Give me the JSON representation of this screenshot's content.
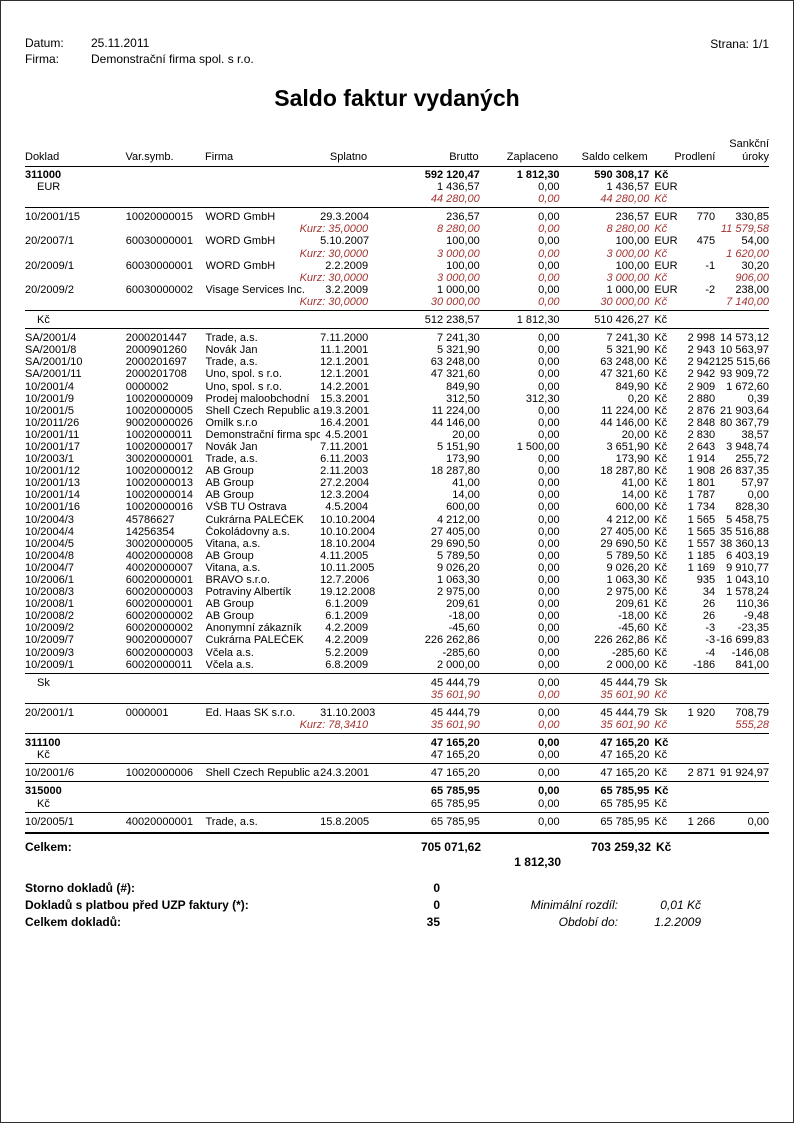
{
  "meta": {
    "datum_label": "Datum:",
    "datum": "25.11.2011",
    "firma_label": "Firma:",
    "firma": "Demonstrační firma spol. s r.o.",
    "strana": "Strana: 1/1"
  },
  "title": "Saldo faktur vydaných",
  "colors": {
    "red_text": "#a23533",
    "text": "#000000",
    "page_border": "#2f2f2f"
  },
  "header": {
    "doklad": "Doklad",
    "varsymb": "Var.symb.",
    "firma": "Firma",
    "splatno": "Splatno",
    "brutto": "Brutto",
    "zaplaceno": "Zaplaceno",
    "saldo": "Saldo celkem",
    "prodleni": "Prodlení",
    "sankcni_top": "Sankční",
    "sankcni_bottom": "úroky"
  },
  "rows": [
    {
      "t": "group",
      "doklad": "311000",
      "brutto": "592 120,47",
      "zapl": "1 812,30",
      "saldo": "590 308,17",
      "cur": "Kč"
    },
    {
      "t": "cursub",
      "label": "EUR",
      "brutto": "1 436,57",
      "zapl": "0,00",
      "saldo": "1 436,57",
      "cur": "EUR"
    },
    {
      "t": "red",
      "brutto": "44 280,00",
      "zapl": "0,00",
      "saldo": "44 280,00",
      "cur": "Kč"
    },
    {
      "t": "rule"
    },
    {
      "t": "detail",
      "doklad": "10/2001/15",
      "vs": "10020000015",
      "firma": "WORD GmbH",
      "splatno": "29.3.2004",
      "brutto": "236,57",
      "zapl": "0,00",
      "saldo": "236,57",
      "cur": "EUR",
      "prod": "770",
      "sank": "330,85"
    },
    {
      "t": "kurz",
      "kurz": "Kurz: 35,0000",
      "brutto": "8 280,00",
      "zapl": "0,00",
      "saldo": "8 280,00",
      "cur": "Kč",
      "sank": "11 579,58"
    },
    {
      "t": "detail",
      "doklad": "20/2007/1",
      "vs": "60030000001",
      "firma": "WORD GmbH",
      "splatno": "5.10.2007",
      "brutto": "100,00",
      "zapl": "0,00",
      "saldo": "100,00",
      "cur": "EUR",
      "prod": "475",
      "sank": "54,00"
    },
    {
      "t": "kurz",
      "kurz": "Kurz: 30,0000",
      "brutto": "3 000,00",
      "zapl": "0,00",
      "saldo": "3 000,00",
      "cur": "Kč",
      "sank": "1 620,00"
    },
    {
      "t": "detail",
      "doklad": "20/2009/1",
      "vs": "60030000001",
      "firma": "WORD GmbH",
      "splatno": "2.2.2009",
      "brutto": "100,00",
      "zapl": "0,00",
      "saldo": "100,00",
      "cur": "EUR",
      "prod": "-1",
      "sank": "30,20"
    },
    {
      "t": "kurz",
      "kurz": "Kurz: 30,0000",
      "brutto": "3 000,00",
      "zapl": "0,00",
      "saldo": "3 000,00",
      "cur": "Kč",
      "sank": "906,00"
    },
    {
      "t": "detail",
      "doklad": "20/2009/2",
      "vs": "60030000002",
      "firma": "Visage Services Inc.",
      "splatno": "3.2.2009",
      "brutto": "1 000,00",
      "zapl": "0,00",
      "saldo": "1 000,00",
      "cur": "EUR",
      "prod": "-2",
      "sank": "238,00"
    },
    {
      "t": "kurz",
      "kurz": "Kurz: 30,0000",
      "brutto": "30 000,00",
      "zapl": "0,00",
      "saldo": "30 000,00",
      "cur": "Kč",
      "sank": "7 140,00"
    },
    {
      "t": "rule"
    },
    {
      "t": "cursub",
      "label": "Kč",
      "brutto": "512 238,57",
      "zapl": "1 812,30",
      "saldo": "510 426,27",
      "cur": "Kč"
    },
    {
      "t": "rule"
    },
    {
      "t": "detail",
      "doklad": "SA/2001/4",
      "vs": "2000201447",
      "firma": "Trade, a.s.",
      "splatno": "7.11.2000",
      "brutto": "7 241,30",
      "zapl": "0,00",
      "saldo": "7 241,30",
      "cur": "Kč",
      "prod": "2 998",
      "sank": "14 573,12"
    },
    {
      "t": "detail",
      "doklad": "SA/2001/8",
      "vs": "2000901260",
      "firma": "Novák Jan",
      "splatno": "11.1.2001",
      "brutto": "5 321,90",
      "zapl": "0,00",
      "saldo": "5 321,90",
      "cur": "Kč",
      "prod": "2 943",
      "sank": "10 563,97"
    },
    {
      "t": "detail",
      "doklad": "SA/2001/10",
      "vs": "2000201697",
      "firma": "Trade, a.s.",
      "splatno": "12.1.2001",
      "brutto": "63 248,00",
      "zapl": "0,00",
      "saldo": "63 248,00",
      "cur": "Kč",
      "prod": "2 942",
      "sank": "125 515,66"
    },
    {
      "t": "detail",
      "doklad": "SA/2001/11",
      "vs": "2000201708",
      "firma": "Uno, spol. s r.o.",
      "splatno": "12.1.2001",
      "brutto": "47 321,60",
      "zapl": "0,00",
      "saldo": "47 321,60",
      "cur": "Kč",
      "prod": "2 942",
      "sank": "93 909,72"
    },
    {
      "t": "detail",
      "doklad": "10/2001/4",
      "vs": "0000002",
      "firma": "Uno, spol. s r.o.",
      "splatno": "14.2.2001",
      "brutto": "849,90",
      "zapl": "0,00",
      "saldo": "849,90",
      "cur": "Kč",
      "prod": "2 909",
      "sank": "1 672,60"
    },
    {
      "t": "detail",
      "doklad": "10/2001/9",
      "vs": "10020000009",
      "firma": "Prodej maloobchodní",
      "splatno": "15.3.2001",
      "brutto": "312,50",
      "zapl": "312,30",
      "saldo": "0,20",
      "cur": "Kč",
      "prod": "2 880",
      "sank": "0,39"
    },
    {
      "t": "detail",
      "doklad": "10/2001/5",
      "vs": "10020000005",
      "firma": "Shell Czech Republic a.s.",
      "splatno": "19.3.2001",
      "brutto": "11 224,00",
      "zapl": "0,00",
      "saldo": "11 224,00",
      "cur": "Kč",
      "prod": "2 876",
      "sank": "21 903,64"
    },
    {
      "t": "detail",
      "doklad": "10/2011/26",
      "vs": "90020000026",
      "firma": "Omilk s.r.o",
      "splatno": "16.4.2001",
      "brutto": "44 146,00",
      "zapl": "0,00",
      "saldo": "44 146,00",
      "cur": "Kč",
      "prod": "2 848",
      "sank": "80 367,79"
    },
    {
      "t": "detail",
      "doklad": "10/2001/11",
      "vs": "10020000011",
      "firma": "Demonstrační firma spol.",
      "splatno": "4.5.2001",
      "brutto": "20,00",
      "zapl": "0,00",
      "saldo": "20,00",
      "cur": "Kč",
      "prod": "2 830",
      "sank": "38,57"
    },
    {
      "t": "detail",
      "doklad": "10/2001/17",
      "vs": "10020000017",
      "firma": "Novák Jan",
      "splatno": "7.11.2001",
      "brutto": "5 151,90",
      "zapl": "1 500,00",
      "saldo": "3 651,90",
      "cur": "Kč",
      "prod": "2 643",
      "sank": "3 948,74"
    },
    {
      "t": "detail",
      "doklad": "10/2003/1",
      "vs": "30020000001",
      "firma": "Trade, a.s.",
      "splatno": "6.11.2003",
      "brutto": "173,90",
      "zapl": "0,00",
      "saldo": "173,90",
      "cur": "Kč",
      "prod": "1 914",
      "sank": "255,72"
    },
    {
      "t": "detail",
      "doklad": "10/2001/12",
      "vs": "10020000012",
      "firma": "AB Group",
      "splatno": "2.11.2003",
      "brutto": "18 287,80",
      "zapl": "0,00",
      "saldo": "18 287,80",
      "cur": "Kč",
      "prod": "1 908",
      "sank": "26 837,35"
    },
    {
      "t": "detail",
      "doklad": "10/2001/13",
      "vs": "10020000013",
      "firma": "AB Group",
      "splatno": "27.2.2004",
      "brutto": "41,00",
      "zapl": "0,00",
      "saldo": "41,00",
      "cur": "Kč",
      "prod": "1 801",
      "sank": "57,97"
    },
    {
      "t": "detail",
      "doklad": "10/2001/14",
      "vs": "10020000014",
      "firma": "AB Group",
      "splatno": "12.3.2004",
      "brutto": "14,00",
      "zapl": "0,00",
      "saldo": "14,00",
      "cur": "Kč",
      "prod": "1 787",
      "sank": "0,00"
    },
    {
      "t": "detail",
      "doklad": "10/2001/16",
      "vs": "10020000016",
      "firma": "VŠB TU Ostrava",
      "splatno": "4.5.2004",
      "brutto": "600,00",
      "zapl": "0,00",
      "saldo": "600,00",
      "cur": "Kč",
      "prod": "1 734",
      "sank": "828,30"
    },
    {
      "t": "detail",
      "doklad": "10/2004/3",
      "vs": "45786627",
      "firma": "Cukrárna PALEČEK",
      "splatno": "10.10.2004",
      "brutto": "4 212,00",
      "zapl": "0,00",
      "saldo": "4 212,00",
      "cur": "Kč",
      "prod": "1 565",
      "sank": "5 458,75"
    },
    {
      "t": "detail",
      "doklad": "10/2004/4",
      "vs": "14256354",
      "firma": "Čokoládovny a.s.",
      "splatno": "10.10.2004",
      "brutto": "27 405,00",
      "zapl": "0,00",
      "saldo": "27 405,00",
      "cur": "Kč",
      "prod": "1 565",
      "sank": "35 516,88"
    },
    {
      "t": "detail",
      "doklad": "10/2004/5",
      "vs": "30020000005",
      "firma": "Vitana, a.s.",
      "splatno": "18.10.2004",
      "brutto": "29 690,50",
      "zapl": "0,00",
      "saldo": "29 690,50",
      "cur": "Kč",
      "prod": "1 557",
      "sank": "38 360,13"
    },
    {
      "t": "detail",
      "doklad": "10/2004/8",
      "vs": "40020000008",
      "firma": "AB Group",
      "splatno": "4.11.2005",
      "brutto": "5 789,50",
      "zapl": "0,00",
      "saldo": "5 789,50",
      "cur": "Kč",
      "prod": "1 185",
      "sank": "6 403,19"
    },
    {
      "t": "detail",
      "doklad": "10/2004/7",
      "vs": "40020000007",
      "firma": "Vitana, a.s.",
      "splatno": "10.11.2005",
      "brutto": "9 026,20",
      "zapl": "0,00",
      "saldo": "9 026,20",
      "cur": "Kč",
      "prod": "1 169",
      "sank": "9 910,77"
    },
    {
      "t": "detail",
      "doklad": "10/2006/1",
      "vs": "60020000001",
      "firma": "BRAVO s.r.o.",
      "splatno": "12.7.2006",
      "brutto": "1 063,30",
      "zapl": "0,00",
      "saldo": "1 063,30",
      "cur": "Kč",
      "prod": "935",
      "sank": "1 043,10"
    },
    {
      "t": "detail",
      "doklad": "10/2008/3",
      "vs": "60020000003",
      "firma": "Potraviny Albertík",
      "splatno": "19.12.2008",
      "brutto": "2 975,00",
      "zapl": "0,00",
      "saldo": "2 975,00",
      "cur": "Kč",
      "prod": "34",
      "sank": "1 578,24"
    },
    {
      "t": "detail",
      "doklad": "10/2008/1",
      "vs": "60020000001",
      "firma": "AB Group",
      "splatno": "6.1.2009",
      "brutto": "209,61",
      "zapl": "0,00",
      "saldo": "209,61",
      "cur": "Kč",
      "prod": "26",
      "sank": "110,36"
    },
    {
      "t": "detail",
      "doklad": "10/2008/2",
      "vs": "60020000002",
      "firma": "AB Group",
      "splatno": "6.1.2009",
      "brutto": "-18,00",
      "zapl": "0,00",
      "saldo": "-18,00",
      "cur": "Kč",
      "prod": "26",
      "sank": "-9,48"
    },
    {
      "t": "detail",
      "doklad": "10/2009/2",
      "vs": "60020000002",
      "firma": "Anonymní zákazník",
      "splatno": "4.2.2009",
      "brutto": "-45,60",
      "zapl": "0,00",
      "saldo": "-45,60",
      "cur": "Kč",
      "prod": "-3",
      "sank": "-23,35"
    },
    {
      "t": "detail",
      "doklad": "10/2009/7",
      "vs": "90020000007",
      "firma": "Cukrárna PALEČEK",
      "splatno": "4.2.2009",
      "brutto": "226 262,86",
      "zapl": "0,00",
      "saldo": "226 262,86",
      "cur": "Kč",
      "prod": "-3",
      "sank": "-16 699,83"
    },
    {
      "t": "detail",
      "doklad": "10/2009/3",
      "vs": "60020000003",
      "firma": "Včela a.s.",
      "splatno": "5.2.2009",
      "brutto": "-285,60",
      "zapl": "0,00",
      "saldo": "-285,60",
      "cur": "Kč",
      "prod": "-4",
      "sank": "-146,08"
    },
    {
      "t": "detail",
      "doklad": "10/2009/1",
      "vs": "60020000011",
      "firma": "Včela a.s.",
      "splatno": "6.8.2009",
      "brutto": "2 000,00",
      "zapl": "0,00",
      "saldo": "2 000,00",
      "cur": "Kč",
      "prod": "-186",
      "sank": "841,00"
    },
    {
      "t": "rule"
    },
    {
      "t": "cursub",
      "label": "Sk",
      "brutto": "45 444,79",
      "zapl": "0,00",
      "saldo": "45 444,79",
      "cur": "Sk"
    },
    {
      "t": "red",
      "brutto": "35 601,90",
      "zapl": "0,00",
      "saldo": "35 601,90",
      "cur": "Kč"
    },
    {
      "t": "rule"
    },
    {
      "t": "detail",
      "doklad": "20/2001/1",
      "vs": "0000001",
      "firma": "Ed. Haas SK s.r.o.",
      "splatno": "31.10.2003",
      "brutto": "45 444,79",
      "zapl": "0,00",
      "saldo": "45 444,79",
      "cur": "Sk",
      "prod": "1 920",
      "sank": "708,79"
    },
    {
      "t": "kurz",
      "kurz": "Kurz: 78,3410",
      "brutto": "35 601,90",
      "zapl": "0,00",
      "saldo": "35 601,90",
      "cur": "Kč",
      "sank": "555,28"
    },
    {
      "t": "rule"
    },
    {
      "t": "group",
      "doklad": "311100",
      "brutto": "47 165,20",
      "zapl": "0,00",
      "saldo": "47 165,20",
      "cur": "Kč"
    },
    {
      "t": "cursub",
      "label": "Kč",
      "brutto": "47 165,20",
      "zapl": "0,00",
      "saldo": "47 165,20",
      "cur": "Kč"
    },
    {
      "t": "rule"
    },
    {
      "t": "detail",
      "doklad": "10/2001/6",
      "vs": "10020000006",
      "firma": "Shell Czech Republic a.s.",
      "splatno": "24.3.2001",
      "brutto": "47 165,20",
      "zapl": "0,00",
      "saldo": "47 165,20",
      "cur": "Kč",
      "prod": "2 871",
      "sank": "91 924,97"
    },
    {
      "t": "rule"
    },
    {
      "t": "group",
      "doklad": "315000",
      "brutto": "65 785,95",
      "zapl": "0,00",
      "saldo": "65 785,95",
      "cur": "Kč"
    },
    {
      "t": "cursub",
      "label": "Kč",
      "brutto": "65 785,95",
      "zapl": "0,00",
      "saldo": "65 785,95",
      "cur": "Kč"
    },
    {
      "t": "rule"
    },
    {
      "t": "detail",
      "doklad": "10/2005/1",
      "vs": "40020000001",
      "firma": "Trade, a.s.",
      "splatno": "15.8.2005",
      "brutto": "65 785,95",
      "zapl": "0,00",
      "saldo": "65 785,95",
      "cur": "Kč",
      "prod": "1 266",
      "sank": "0,00"
    },
    {
      "t": "rule",
      "thick": true
    }
  ],
  "totals": {
    "label": "Celkem:",
    "brutto": "705 071,62",
    "zaplaceno": "1 812,30",
    "saldo": "703 259,32",
    "cur": "Kč"
  },
  "footer": {
    "storno_label": "Storno dokladů (#):",
    "storno_value": "0",
    "uzp_label": "Dokladů s platbou před UZP faktury (*):",
    "uzp_value": "0",
    "min_rozdil_label": "Minimální rozdíl:",
    "min_rozdil_value": "0,01 Kč",
    "celkem_label": "Celkem dokladů:",
    "celkem_value": "35",
    "obdobi_label": "Období do:",
    "obdobi_value": "1.2.2009"
  }
}
